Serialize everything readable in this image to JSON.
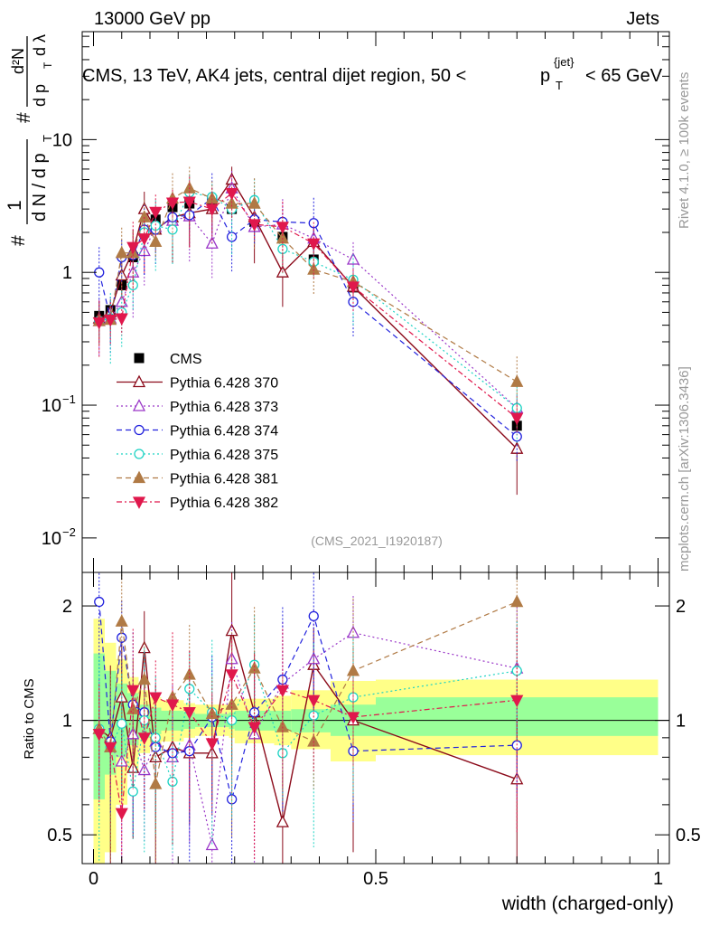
{
  "header": {
    "energy_label": "13000 GeV pp",
    "category_label": "Jets",
    "title_main": "CMS, 13 TeV, AK4 jets, central dijet region, 50 <",
    "title_p": "p",
    "title_sub": "T",
    "title_sup": "{jet}",
    "title_tail": "< 65 GeV"
  },
  "side_labels": {
    "rivet": "Rivet 4.1.0, ≥ 100k events",
    "mcplots": "mcplots.cern.ch [arXiv:1306.3436]"
  },
  "analysis_id": "(CMS_2021_I1920187)",
  "y_axis_main": {
    "ticks": [
      {
        "value": 0.01,
        "base": "10",
        "exp": "−2"
      },
      {
        "value": 0.1,
        "base": "10",
        "exp": "−1"
      },
      {
        "value": 1,
        "base": "1",
        "exp": ""
      },
      {
        "value": 10,
        "base": "10",
        "exp": ""
      }
    ],
    "label_hash1": "#",
    "label_hash2": "#",
    "label_one": "1",
    "label_dN": "d N / d p",
    "label_dN_sub": "T",
    "label_d2N": "d²N",
    "label_dpdl": "d p",
    "label_dpdl_sub": "T",
    "label_dlambda": "d λ"
  },
  "y_axis_ratio": {
    "label": "Ratio to CMS",
    "ticks": [
      "0.5",
      "1",
      "2"
    ]
  },
  "x_axis": {
    "label": "width (charged-only)",
    "ticks": [
      "0",
      "0.5",
      "1"
    ]
  },
  "legend": [
    {
      "label": "CMS",
      "color": "#000000",
      "marker": "square-filled",
      "dash": ""
    },
    {
      "label": "Pythia 6.428 370",
      "color": "#8b0a1a",
      "marker": "triangle-up-open",
      "dash": ""
    },
    {
      "label": "Pythia 6.428 373",
      "color": "#9a36c8",
      "marker": "triangle-up-open",
      "dash": "2,3"
    },
    {
      "label": "Pythia 6.428 374",
      "color": "#2222dd",
      "marker": "circle-open",
      "dash": "6,4"
    },
    {
      "label": "Pythia 6.428 375",
      "color": "#1ed3c4",
      "marker": "circle-open",
      "dash": "2,3"
    },
    {
      "label": "Pythia 6.428 381",
      "color": "#b07a45",
      "marker": "triangle-up-filled",
      "dash": "6,4"
    },
    {
      "label": "Pythia 6.428 382",
      "color": "#e0184c",
      "marker": "triangle-down-filled",
      "dash": "6,3,2,3"
    }
  ],
  "chart_data": [
    {
      "type": "scatter",
      "panel": "main",
      "x_scale": "linear",
      "y_scale": "log",
      "xlim": [
        -0.02,
        1.02
      ],
      "ylim": [
        0.0055,
        65
      ],
      "x": [
        0.01,
        0.03,
        0.05,
        0.07,
        0.09,
        0.11,
        0.14,
        0.17,
        0.21,
        0.245,
        0.285,
        0.335,
        0.39,
        0.46,
        0.75
      ],
      "series": [
        {
          "name": "CMS",
          "values": [
            0.47,
            0.52,
            0.8,
            1.3,
            2.0,
            2.5,
            3.1,
            3.3,
            3.5,
            3.0,
            2.4,
            1.85,
            1.25,
            0.77,
            0.07
          ]
        },
        {
          "name": "Pythia 6.428 370",
          "values": [
            0.45,
            0.5,
            0.95,
            1.45,
            3.0,
            2.1,
            2.6,
            2.8,
            3.0,
            5.0,
            2.6,
            1.0,
            1.7,
            0.78,
            0.047
          ]
        },
        {
          "name": "Pythia 6.428 373",
          "values": [
            0.43,
            0.45,
            0.6,
            1.0,
            1.45,
            2.2,
            2.45,
            2.65,
            1.65,
            4.3,
            2.2,
            2.3,
            1.8,
            1.25,
            0.095
          ]
        },
        {
          "name": "Pythia 6.428 374",
          "values": [
            1.0,
            0.45,
            1.3,
            1.35,
            2.1,
            2.1,
            2.6,
            2.7,
            3.6,
            1.85,
            2.5,
            2.4,
            2.35,
            0.6,
            0.058
          ]
        },
        {
          "name": "Pythia 6.428 375",
          "values": [
            0.43,
            0.45,
            0.5,
            0.8,
            2.0,
            2.25,
            2.1,
            4.0,
            3.7,
            3.0,
            3.5,
            1.5,
            1.2,
            0.88,
            0.095
          ]
        },
        {
          "name": "Pythia 6.428 381",
          "values": [
            0.43,
            0.44,
            1.4,
            1.4,
            2.6,
            1.7,
            3.6,
            4.3,
            3.6,
            3.3,
            3.3,
            1.8,
            1.05,
            0.85,
            0.15
          ]
        },
        {
          "name": "Pythia 6.428 382",
          "values": [
            0.42,
            0.44,
            0.45,
            1.55,
            1.8,
            2.85,
            3.35,
            3.4,
            3.0,
            3.95,
            2.3,
            2.2,
            1.65,
            0.78,
            0.08
          ]
        }
      ],
      "title": "CMS, 13 TeV, AK4 jets, central dijet region, 50 < p_T^{jet} < 65 GeV",
      "xlabel": "width (charged-only)"
    },
    {
      "type": "scatter",
      "panel": "ratio",
      "x_scale": "linear",
      "y_scale": "log",
      "xlim": [
        -0.02,
        1.02
      ],
      "ylim": [
        0.42,
        2.45
      ],
      "bin_edges": [
        0.0,
        0.02,
        0.04,
        0.06,
        0.08,
        0.1,
        0.12,
        0.16,
        0.18,
        0.24,
        0.25,
        0.32,
        0.35,
        0.42,
        0.5,
        1.0
      ],
      "band_green": [
        [
          0.62,
          1.5
        ],
        [
          0.72,
          1.35
        ],
        [
          0.8,
          1.25
        ],
        [
          0.86,
          1.18
        ],
        [
          0.9,
          1.1
        ],
        [
          0.92,
          1.08
        ],
        [
          0.94,
          1.06
        ],
        [
          0.95,
          1.05
        ],
        [
          0.96,
          1.04
        ],
        [
          0.95,
          1.05
        ],
        [
          0.94,
          1.06
        ],
        [
          0.94,
          1.06
        ],
        [
          0.93,
          1.07
        ],
        [
          0.91,
          1.1
        ],
        [
          0.91,
          1.15
        ]
      ],
      "band_yellow": [
        [
          0.38,
          1.85
        ],
        [
          0.45,
          1.6
        ],
        [
          0.6,
          1.45
        ],
        [
          0.74,
          1.3
        ],
        [
          0.82,
          1.2
        ],
        [
          0.86,
          1.15
        ],
        [
          0.88,
          1.13
        ],
        [
          0.9,
          1.11
        ],
        [
          0.91,
          1.1
        ],
        [
          0.9,
          1.11
        ],
        [
          0.87,
          1.14
        ],
        [
          0.86,
          1.16
        ],
        [
          0.84,
          1.2
        ],
        [
          0.78,
          1.27
        ],
        [
          0.81,
          1.28
        ]
      ],
      "x": [
        0.01,
        0.03,
        0.05,
        0.07,
        0.09,
        0.11,
        0.14,
        0.17,
        0.21,
        0.245,
        0.285,
        0.335,
        0.39,
        0.46,
        0.75
      ],
      "series": [
        {
          "name": "Pythia 6.428 370",
          "values": [
            0.95,
            0.9,
            1.15,
            0.75,
            1.55,
            0.8,
            0.85,
            0.82,
            0.82,
            1.72,
            1.05,
            0.54,
            1.4,
            1.0,
            0.7
          ]
        },
        {
          "name": "Pythia 6.428 373",
          "values": [
            0.95,
            0.85,
            0.78,
            0.92,
            0.74,
            0.88,
            0.8,
            0.86,
            0.47,
            1.45,
            0.92,
            1.25,
            1.45,
            1.7,
            1.37
          ]
        },
        {
          "name": "Pythia 6.428 374",
          "values": [
            2.05,
            0.88,
            1.65,
            1.1,
            1.05,
            0.85,
            0.82,
            0.83,
            1.02,
            0.62,
            1.05,
            1.28,
            1.88,
            0.83,
            0.86
          ]
        },
        {
          "name": "Pythia 6.428 375",
          "values": [
            0.95,
            0.85,
            0.98,
            0.65,
            1.0,
            0.9,
            0.69,
            1.21,
            1.05,
            1.0,
            1.4,
            0.82,
            1.03,
            1.15,
            1.35
          ]
        },
        {
          "name": "Pythia 6.428 381",
          "values": [
            0.95,
            0.85,
            1.82,
            1.07,
            1.28,
            0.68,
            1.15,
            1.32,
            1.04,
            1.1,
            1.37,
            0.96,
            0.88,
            1.35,
            2.05
          ]
        },
        {
          "name": "Pythia 6.428 382",
          "values": [
            0.92,
            0.85,
            0.57,
            1.2,
            0.9,
            1.15,
            1.1,
            1.05,
            0.87,
            1.32,
            0.96,
            1.2,
            1.13,
            1.02,
            1.13
          ]
        }
      ],
      "ylabel": "Ratio to CMS",
      "xlabel": "width (charged-only)"
    }
  ]
}
